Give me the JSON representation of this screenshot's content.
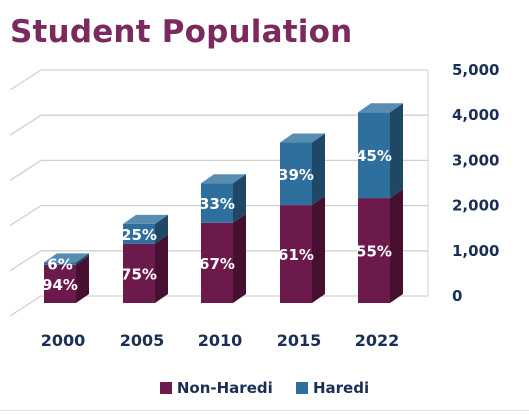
{
  "title": "Student Population",
  "chart_data": {
    "type": "bar",
    "stacked": true,
    "title": "Student Population",
    "categories": [
      "2000",
      "2005",
      "2010",
      "2015",
      "2022"
    ],
    "totals": [
      900,
      1750,
      2650,
      3550,
      4220
    ],
    "series": [
      {
        "name": "Non-Haredi",
        "color": "#6b1a4b",
        "percent_labels": [
          "94%",
          "75%",
          "67%",
          "61%",
          "55%"
        ],
        "share": [
          0.94,
          0.75,
          0.67,
          0.61,
          0.55
        ]
      },
      {
        "name": "Haredi",
        "color": "#2f6f9d",
        "percent_labels": [
          "6%",
          "25%",
          "33%",
          "39%",
          "45%"
        ],
        "share": [
          0.06,
          0.25,
          0.33,
          0.39,
          0.45
        ]
      }
    ],
    "y_axis": {
      "ticks": [
        "0",
        "1,000",
        "2,000",
        "3,000",
        "4,000",
        "5,000"
      ],
      "min": 0,
      "max": 5000,
      "position": "right"
    },
    "grid": true,
    "legend_position": "bottom"
  }
}
